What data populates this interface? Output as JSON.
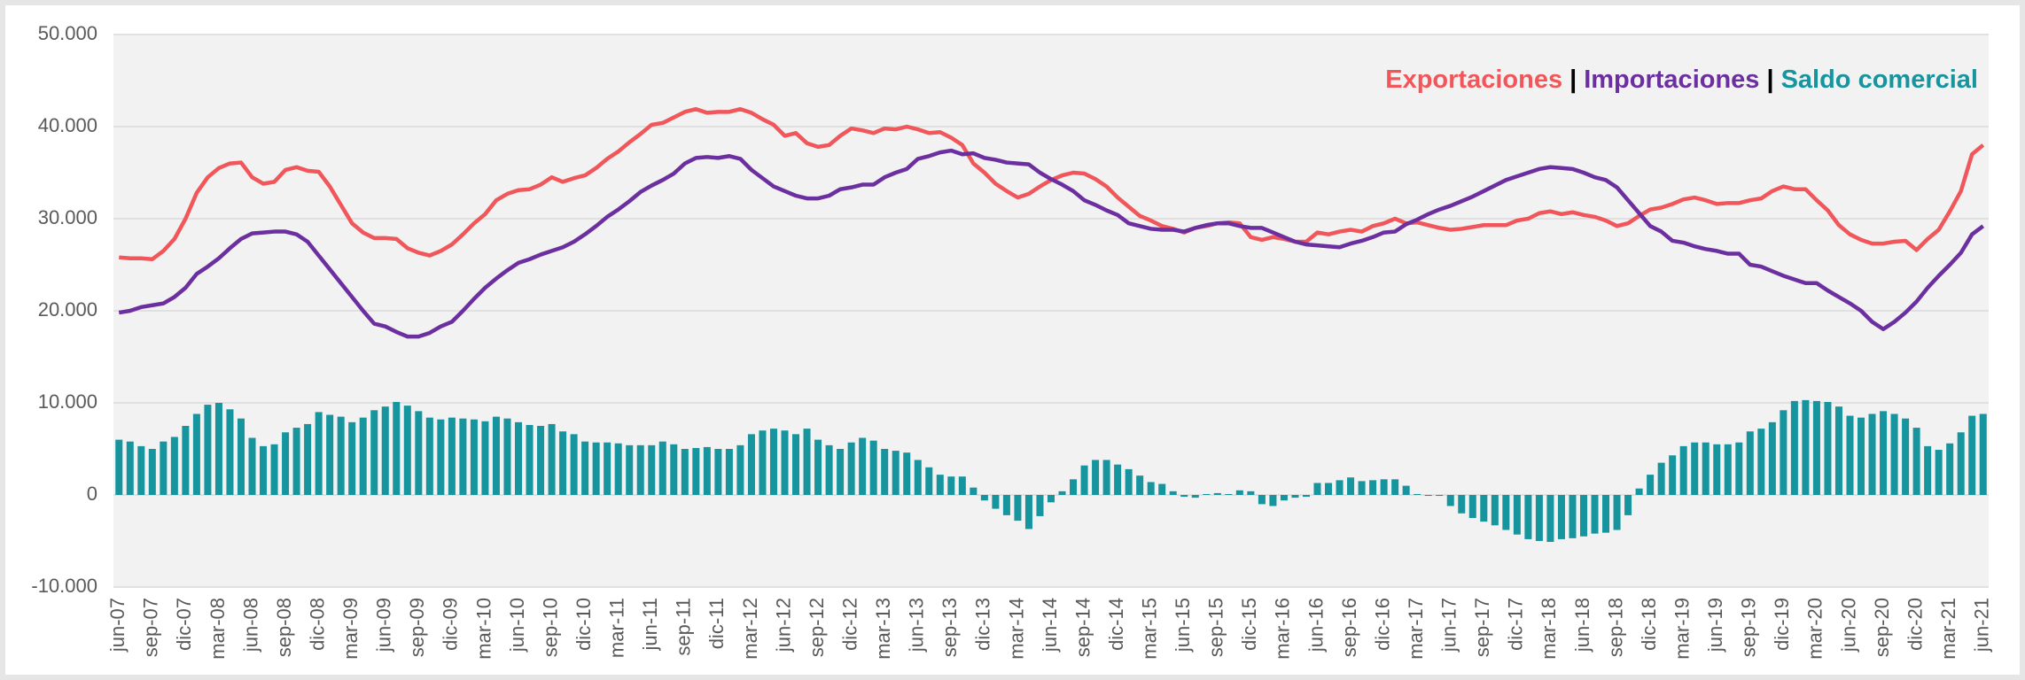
{
  "chart_data": {
    "type": "combo",
    "legend": "top-right",
    "legend_separator": "|",
    "grid": true,
    "categories": [
      "jun-07",
      null,
      null,
      "sep-07",
      null,
      null,
      "dic-07",
      null,
      null,
      "mar-08",
      null,
      null,
      "jun-08",
      null,
      null,
      "sep-08",
      null,
      null,
      "dic-08",
      null,
      null,
      "mar-09",
      null,
      null,
      "jun-09",
      null,
      null,
      "sep-09",
      null,
      null,
      "dic-09",
      null,
      null,
      "mar-10",
      null,
      null,
      "jun-10",
      null,
      null,
      "sep-10",
      null,
      null,
      "dic-10",
      null,
      null,
      "mar-11",
      null,
      null,
      "jun-11",
      null,
      null,
      "sep-11",
      null,
      null,
      "dic-11",
      null,
      null,
      "mar-12",
      null,
      null,
      "jun-12",
      null,
      null,
      "sep-12",
      null,
      null,
      "dic-12",
      null,
      null,
      "mar-13",
      null,
      null,
      "jun-13",
      null,
      null,
      "sep-13",
      null,
      null,
      "dic-13",
      null,
      null,
      "mar-14",
      null,
      null,
      "jun-14",
      null,
      null,
      "sep-14",
      null,
      null,
      "dic-14",
      null,
      null,
      "mar-15",
      null,
      null,
      "jun-15",
      null,
      null,
      "sep-15",
      null,
      null,
      "dic-15",
      null,
      null,
      "mar-16",
      null,
      null,
      "jun-16",
      null,
      null,
      "sep-16",
      null,
      null,
      "dic-16",
      null,
      null,
      "mar-17",
      null,
      null,
      "jun-17",
      null,
      null,
      "sep-17",
      null,
      null,
      "dic-17",
      null,
      null,
      "mar-18",
      null,
      null,
      "jun-18",
      null,
      null,
      "sep-18",
      null,
      null,
      "dic-18",
      null,
      null,
      "mar-19",
      null,
      null,
      "jun-19",
      null,
      null,
      "sep-19",
      null,
      null,
      "dic-19",
      null,
      null,
      "mar-20",
      null,
      null,
      "jun-20",
      null,
      null,
      "sep-20",
      null,
      null,
      "dic-20",
      null,
      null,
      "mar-21",
      null,
      null,
      "jun-21"
    ],
    "ylim": [
      -10000,
      50000
    ],
    "yticks": [
      {
        "value": -10000,
        "label": "-10.000"
      },
      0,
      {
        "value": 10000,
        "label": "10.000"
      },
      {
        "value": 20000,
        "label": "20.000"
      },
      {
        "value": 30000,
        "label": "30.000"
      },
      {
        "value": 40000,
        "label": "40.000"
      },
      {
        "value": 50000,
        "label": "50.000"
      }
    ],
    "series": [
      {
        "name": "Exportaciones",
        "type": "line",
        "color": "#f0565a",
        "values": [
          25800,
          25700,
          25700,
          25600,
          26500,
          27800,
          30000,
          32800,
          34500,
          35500,
          36000,
          36100,
          34500,
          33800,
          34000,
          35300,
          35600,
          35200,
          35100,
          33500,
          31500,
          29500,
          28500,
          27900,
          27900,
          27800,
          26800,
          26300,
          26000,
          26500,
          27200,
          28300,
          29500,
          30500,
          32000,
          32700,
          33100,
          33200,
          33700,
          34500,
          34000,
          34400,
          34700,
          35500,
          36500,
          37300,
          38300,
          39200,
          40200,
          40400,
          41000,
          41600,
          41900,
          41500,
          41600,
          41600,
          41900,
          41500,
          40800,
          40200,
          39000,
          39300,
          38200,
          37800,
          38000,
          39000,
          39800,
          39600,
          39300,
          39800,
          39700,
          40000,
          39700,
          39300,
          39400,
          38800,
          38000,
          36000,
          35000,
          33800,
          33000,
          32300,
          32700,
          33500,
          34200,
          34700,
          35000,
          34900,
          34300,
          33500,
          32300,
          31300,
          30300,
          29800,
          29200,
          28900,
          28500,
          29000,
          29200,
          29500,
          29600,
          29500,
          28000,
          27700,
          28000,
          27800,
          27500,
          27500,
          28500,
          28300,
          28600,
          28800,
          28600,
          29200,
          29500,
          30000,
          29500,
          29600,
          29300,
          29000,
          28800,
          28900,
          29100,
          29300,
          29300,
          29300,
          29800,
          30000,
          30600,
          30800,
          30500,
          30700,
          30400,
          30200,
          29800,
          29200,
          29500,
          30300,
          31000,
          31200,
          31600,
          32100,
          32300,
          32000,
          31600,
          31700,
          31700,
          32000,
          32200,
          33000,
          33500,
          33200,
          33200,
          32000,
          30900,
          29300,
          28300,
          27700,
          27300,
          27300,
          27500,
          27600,
          26600,
          27800,
          28800,
          30800,
          33000,
          37000,
          38000
        ]
      },
      {
        "name": "Importaciones",
        "type": "line",
        "color": "#6b2fa0",
        "values": [
          19800,
          20000,
          20400,
          20600,
          20800,
          21500,
          22500,
          24000,
          24800,
          25700,
          26800,
          27800,
          28400,
          28500,
          28600,
          28600,
          28300,
          27500,
          26000,
          24500,
          23000,
          21500,
          20000,
          18600,
          18300,
          17700,
          17200,
          17200,
          17600,
          18300,
          18800,
          20000,
          21300,
          22500,
          23500,
          24400,
          25200,
          25600,
          26100,
          26500,
          26900,
          27500,
          28300,
          29200,
          30200,
          31000,
          31900,
          32900,
          33600,
          34200,
          34900,
          36000,
          36600,
          36700,
          36600,
          36800,
          36500,
          35300,
          34400,
          33500,
          33000,
          32500,
          32200,
          32200,
          32500,
          33200,
          33400,
          33700,
          33700,
          34500,
          35000,
          35400,
          36500,
          36800,
          37200,
          37400,
          37000,
          37100,
          36600,
          36400,
          36100,
          36000,
          35900,
          35000,
          34300,
          33700,
          33000,
          32000,
          31500,
          30900,
          30400,
          29500,
          29200,
          28900,
          28800,
          28800,
          28600,
          29000,
          29300,
          29500,
          29500,
          29200,
          29000,
          29000,
          28500,
          28000,
          27500,
          27200,
          27100,
          27000,
          26900,
          27300,
          27600,
          28000,
          28500,
          28600,
          29400,
          29900,
          30500,
          31000,
          31400,
          31900,
          32400,
          33000,
          33600,
          34200,
          34600,
          35000,
          35400,
          35600,
          35500,
          35400,
          35000,
          34500,
          34200,
          33400,
          32000,
          30600,
          29200,
          28600,
          27600,
          27400,
          27000,
          26700,
          26500,
          26200,
          26200,
          25000,
          24800,
          24300,
          23800,
          23400,
          23000,
          23000,
          22200,
          21500,
          20800,
          20000,
          18800,
          18000,
          18800,
          19800,
          21000,
          22500,
          23800,
          25000,
          26300,
          28300,
          29200
        ]
      },
      {
        "name": "Saldo comercial",
        "type": "bar",
        "color": "#16959e",
        "values": [
          6000,
          5800,
          5300,
          5000,
          5800,
          6300,
          7500,
          8800,
          9800,
          10000,
          9300,
          8300,
          6200,
          5300,
          5500,
          6800,
          7300,
          7700,
          9000,
          8700,
          8500,
          7900,
          8400,
          9200,
          9600,
          10100,
          9700,
          9100,
          8400,
          8200,
          8400,
          8300,
          8200,
          8000,
          8500,
          8300,
          7900,
          7600,
          7500,
          7700,
          6900,
          6600,
          5800,
          5700,
          5700,
          5600,
          5400,
          5400,
          5400,
          5800,
          5500,
          5000,
          5100,
          5200,
          5000,
          5000,
          5400,
          6600,
          7000,
          7200,
          7000,
          6600,
          7200,
          6000,
          5400,
          5000,
          5700,
          6200,
          5900,
          5000,
          4800,
          4600,
          3800,
          3000,
          2200,
          2000,
          2000,
          800,
          -600,
          -1500,
          -2200,
          -2800,
          -3700,
          -2300,
          -800,
          400,
          1700,
          3200,
          3800,
          3800,
          3300,
          2800,
          2100,
          1400,
          1200,
          400,
          -200,
          -300,
          100,
          200,
          100,
          500,
          400,
          -1000,
          -1200,
          -600,
          -300,
          -200,
          1300,
          1300,
          1600,
          1900,
          1500,
          1600,
          1700,
          1700,
          1000,
          100,
          -100,
          -100,
          -1200,
          -2000,
          -2500,
          -2900,
          -3300,
          -3800,
          -4300,
          -4800,
          -5000,
          -5100,
          -4800,
          -4700,
          -4500,
          -4200,
          -4100,
          -3800,
          -2200,
          700,
          2200,
          3500,
          4300,
          5300,
          5700,
          5700,
          5500,
          5500,
          5700,
          6900,
          7200,
          7900,
          9200,
          10200,
          10300,
          10200,
          10100,
          9600,
          8600,
          8400,
          8800,
          9100,
          8800,
          8300,
          7300,
          5300,
          4900,
          5600,
          6800,
          8600,
          8800
        ]
      }
    ]
  }
}
